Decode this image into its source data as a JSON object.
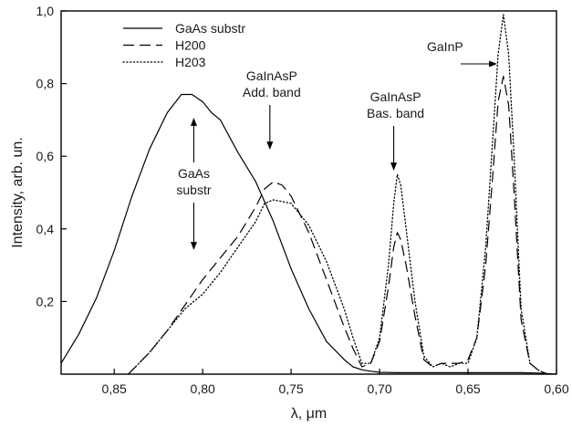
{
  "chart_data": {
    "type": "line",
    "xlabel": "λ, μm",
    "ylabel": "Intensity, arb. un.",
    "xlim": [
      0.88,
      0.6
    ],
    "ylim": [
      0.0,
      1.0
    ],
    "x_reversed": true,
    "x_ticks": [
      0.85,
      0.8,
      0.75,
      0.7,
      0.65,
      0.6
    ],
    "x_tick_labels": [
      "0,85",
      "0,80",
      "0,75",
      "0,70",
      "0,65",
      "0,60"
    ],
    "y_ticks": [
      0.2,
      0.4,
      0.6,
      0.8,
      1.0
    ],
    "y_tick_labels": [
      "0,2",
      "0,4",
      "0,6",
      "0,8",
      "1,0"
    ],
    "grid": false,
    "legend_position": "top-left",
    "series": [
      {
        "name": "GaAs substr",
        "style": "solid",
        "color": "#000000",
        "x": [
          0.88,
          0.87,
          0.86,
          0.85,
          0.84,
          0.83,
          0.82,
          0.812,
          0.806,
          0.8,
          0.795,
          0.79,
          0.78,
          0.77,
          0.76,
          0.75,
          0.74,
          0.73,
          0.72,
          0.715,
          0.71,
          0.705,
          0.7,
          0.69,
          0.68,
          0.67,
          0.66,
          0.65,
          0.64,
          0.63,
          0.62,
          0.61,
          0.6
        ],
        "y": [
          0.03,
          0.11,
          0.21,
          0.34,
          0.49,
          0.62,
          0.72,
          0.77,
          0.77,
          0.75,
          0.72,
          0.7,
          0.61,
          0.53,
          0.42,
          0.29,
          0.18,
          0.09,
          0.04,
          0.02,
          0.012,
          0.008,
          0.005,
          0.004,
          0.004,
          0.004,
          0.004,
          0.004,
          0.004,
          0.004,
          0.004,
          0.003,
          0.0
        ]
      },
      {
        "name": "H200",
        "style": "dashed",
        "color": "#000000",
        "x": [
          0.842,
          0.83,
          0.82,
          0.81,
          0.8,
          0.79,
          0.78,
          0.77,
          0.765,
          0.76,
          0.755,
          0.75,
          0.74,
          0.73,
          0.72,
          0.715,
          0.71,
          0.705,
          0.7,
          0.695,
          0.692,
          0.69,
          0.688,
          0.685,
          0.68,
          0.675,
          0.67,
          0.665,
          0.66,
          0.655,
          0.65,
          0.645,
          0.64,
          0.636,
          0.633,
          0.63,
          0.627,
          0.624,
          0.62,
          0.615,
          0.61,
          0.605
        ],
        "y": [
          0.0,
          0.06,
          0.12,
          0.19,
          0.26,
          0.32,
          0.38,
          0.46,
          0.51,
          0.53,
          0.52,
          0.49,
          0.39,
          0.26,
          0.13,
          0.07,
          0.02,
          0.03,
          0.09,
          0.24,
          0.35,
          0.39,
          0.37,
          0.3,
          0.16,
          0.04,
          0.02,
          0.03,
          0.03,
          0.03,
          0.04,
          0.1,
          0.3,
          0.55,
          0.75,
          0.82,
          0.74,
          0.5,
          0.15,
          0.03,
          0.01,
          0.0
        ]
      },
      {
        "name": "H203",
        "style": "dotted",
        "color": "#000000",
        "x": [
          0.842,
          0.83,
          0.82,
          0.81,
          0.8,
          0.79,
          0.78,
          0.77,
          0.765,
          0.76,
          0.75,
          0.74,
          0.73,
          0.72,
          0.715,
          0.71,
          0.705,
          0.7,
          0.695,
          0.692,
          0.69,
          0.688,
          0.685,
          0.68,
          0.675,
          0.67,
          0.665,
          0.66,
          0.655,
          0.65,
          0.645,
          0.64,
          0.636,
          0.633,
          0.63,
          0.627,
          0.624,
          0.62,
          0.615,
          0.61,
          0.605
        ],
        "y": [
          0.0,
          0.06,
          0.12,
          0.18,
          0.22,
          0.28,
          0.35,
          0.42,
          0.47,
          0.48,
          0.47,
          0.41,
          0.31,
          0.18,
          0.1,
          0.03,
          0.03,
          0.1,
          0.3,
          0.47,
          0.55,
          0.52,
          0.4,
          0.2,
          0.05,
          0.02,
          0.03,
          0.02,
          0.03,
          0.03,
          0.1,
          0.35,
          0.65,
          0.88,
          0.99,
          0.88,
          0.6,
          0.18,
          0.03,
          0.01,
          0.0
        ]
      }
    ],
    "annotations": [
      {
        "lines": [
          "GaAs",
          "substr"
        ],
        "arrow": "up-down",
        "x": 0.805
      },
      {
        "lines": [
          "GaInAsP",
          "Add. band"
        ],
        "arrow": "down",
        "x": 0.762
      },
      {
        "lines": [
          "GaInAsP",
          "Bas. band"
        ],
        "arrow": "down",
        "x": 0.692
      },
      {
        "lines": [
          "GaInP"
        ],
        "arrow": "right",
        "x": 0.633
      }
    ]
  }
}
